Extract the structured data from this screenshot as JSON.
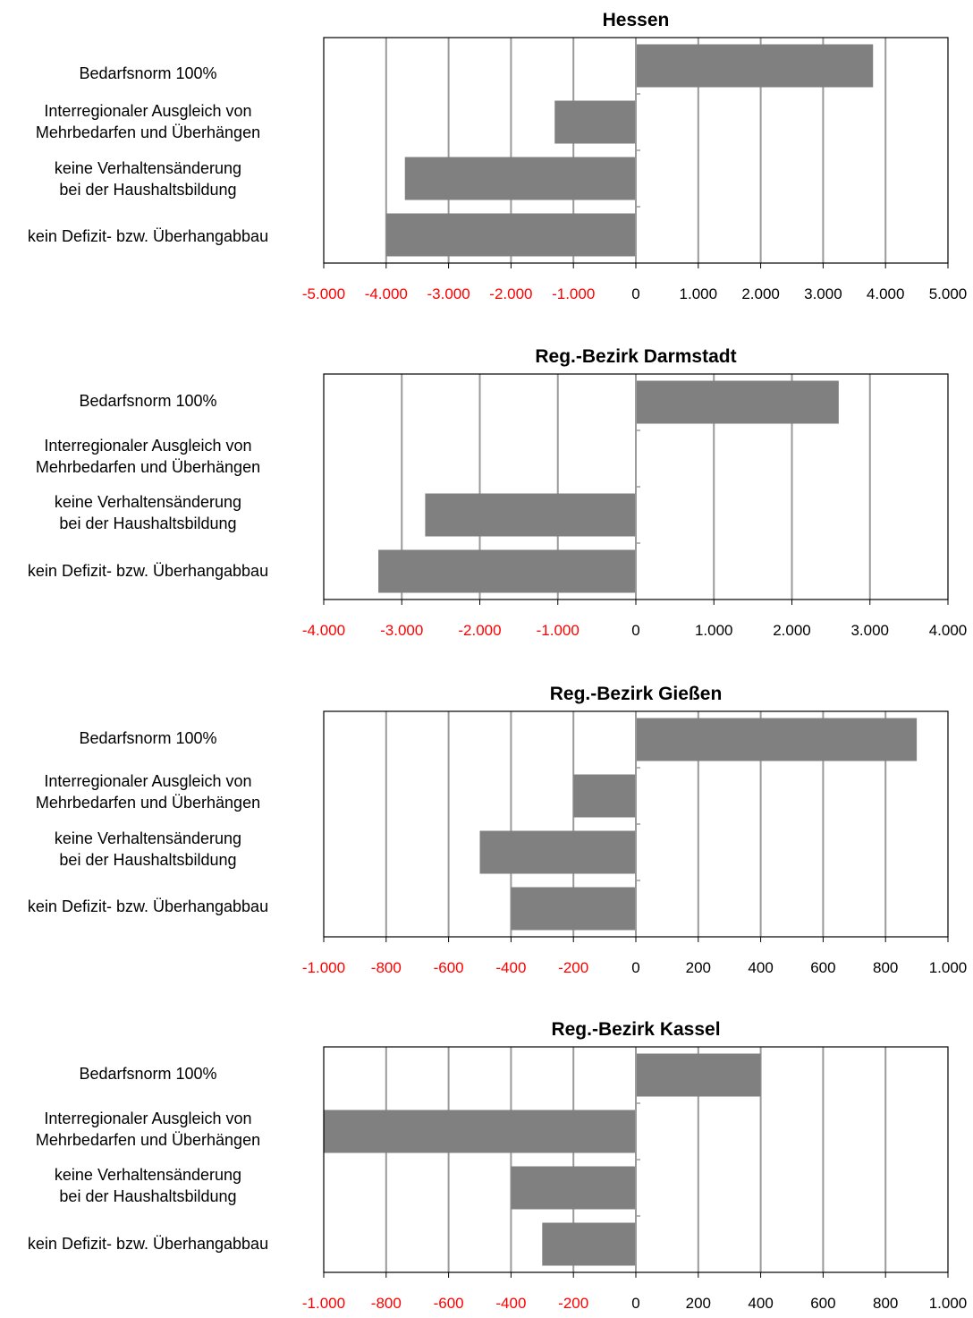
{
  "chart_data": [
    {
      "type": "bar",
      "orientation": "horizontal",
      "title": "Hessen",
      "categories": [
        "Bedarfsnorm 100%",
        "Interregionaler Ausgleich von\nMehrbedarfen und Überhängen",
        "keine Verhaltensänderung\nbei der Haushaltsbildung",
        "kein Defizit- bzw. Überhangabbau"
      ],
      "values": [
        3800,
        -1300,
        -3700,
        -4000
      ],
      "xlim": [
        -5000,
        5000
      ],
      "ticks": [
        -5000,
        -4000,
        -3000,
        -2000,
        -1000,
        0,
        1000,
        2000,
        3000,
        4000,
        5000
      ],
      "tick_labels": [
        "-5.000",
        "-4.000",
        "-3.000",
        "-2.000",
        "-1.000",
        "0",
        "1.000",
        "2.000",
        "3.000",
        "4.000",
        "5.000"
      ],
      "grid": true
    },
    {
      "type": "bar",
      "orientation": "horizontal",
      "title": "Reg.-Bezirk Darmstadt",
      "categories": [
        "Bedarfsnorm 100%",
        "Interregionaler Ausgleich von\nMehrbedarfen und Überhängen",
        "keine Verhaltensänderung\nbei der Haushaltsbildung",
        "kein Defizit- bzw. Überhangabbau"
      ],
      "values": [
        2600,
        0,
        -2700,
        -3300
      ],
      "xlim": [
        -4000,
        4000
      ],
      "ticks": [
        -4000,
        -3000,
        -2000,
        -1000,
        0,
        1000,
        2000,
        3000,
        4000
      ],
      "tick_labels": [
        "-4.000",
        "-3.000",
        "-2.000",
        "-1.000",
        "0",
        "1.000",
        "2.000",
        "3.000",
        "4.000"
      ],
      "grid": true
    },
    {
      "type": "bar",
      "orientation": "horizontal",
      "title": "Reg.-Bezirk Gießen",
      "categories": [
        "Bedarfsnorm 100%",
        "Interregionaler Ausgleich von\nMehrbedarfen und Überhängen",
        "keine Verhaltensänderung\nbei der Haushaltsbildung",
        "kein Defizit- bzw. Überhangabbau"
      ],
      "values": [
        900,
        -200,
        -500,
        -400
      ],
      "xlim": [
        -1000,
        1000
      ],
      "ticks": [
        -1000,
        -800,
        -600,
        -400,
        -200,
        0,
        200,
        400,
        600,
        800,
        1000
      ],
      "tick_labels": [
        "-1.000",
        "-800",
        "-600",
        "-400",
        "-200",
        "0",
        "200",
        "400",
        "600",
        "800",
        "1.000"
      ],
      "grid": true
    },
    {
      "type": "bar",
      "orientation": "horizontal",
      "title": "Reg.-Bezirk Kassel",
      "categories": [
        "Bedarfsnorm 100%",
        "Interregionaler Ausgleich von\nMehrbedarfen und Überhängen",
        "keine Verhaltensänderung\nbei der Haushaltsbildung",
        "kein Defizit- bzw. Überhangabbau"
      ],
      "values": [
        400,
        -1000,
        -400,
        -300
      ],
      "xlim": [
        -1000,
        1000
      ],
      "ticks": [
        -1000,
        -800,
        -600,
        -400,
        -200,
        0,
        200,
        400,
        600,
        800,
        1000
      ],
      "tick_labels": [
        "-1.000",
        "-800",
        "-600",
        "-400",
        "-200",
        "0",
        "200",
        "400",
        "600",
        "800",
        "1.000"
      ],
      "grid": true
    }
  ],
  "colors": {
    "bar": "#808080",
    "grid": "#9a9a9a",
    "frame": "#000000",
    "negative_tick": "#ff0000",
    "positive_tick": "#000000"
  }
}
